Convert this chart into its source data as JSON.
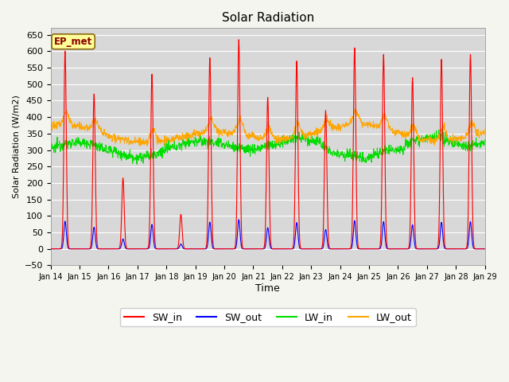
{
  "title": "Solar Radiation",
  "xlabel": "Time",
  "ylabel": "Solar Radiation (W/m2)",
  "ylim": [
    -50,
    670
  ],
  "colors": {
    "SW_in": "#ff0000",
    "SW_out": "#0000ff",
    "LW_in": "#00dd00",
    "LW_out": "#ffa500"
  },
  "annotation_label": "EP_met",
  "annotation_facecolor": "#ffff99",
  "annotation_edgecolor": "#8B6914",
  "annotation_textcolor": "#8B0000",
  "plot_bg": "#d8d8d8",
  "fig_bg": "#f5f5f0",
  "grid_color": "#ffffff",
  "n_days": 15,
  "tick_labels": [
    "Jan 14",
    "Jan 15",
    "Jan 16",
    "Jan 17",
    "Jan 18",
    "Jan 19",
    "Jan 20",
    "Jan 21",
    "Jan 22",
    "Jan 23",
    "Jan 24",
    "Jan 25",
    "Jan 26",
    "Jan 27",
    "Jan 28",
    "Jan 29"
  ],
  "daily_sw_peaks": [
    600,
    470,
    215,
    530,
    105,
    580,
    635,
    460,
    570,
    420,
    610,
    590,
    520,
    575,
    590
  ],
  "lw_in_base": 310,
  "lw_out_base": 348
}
